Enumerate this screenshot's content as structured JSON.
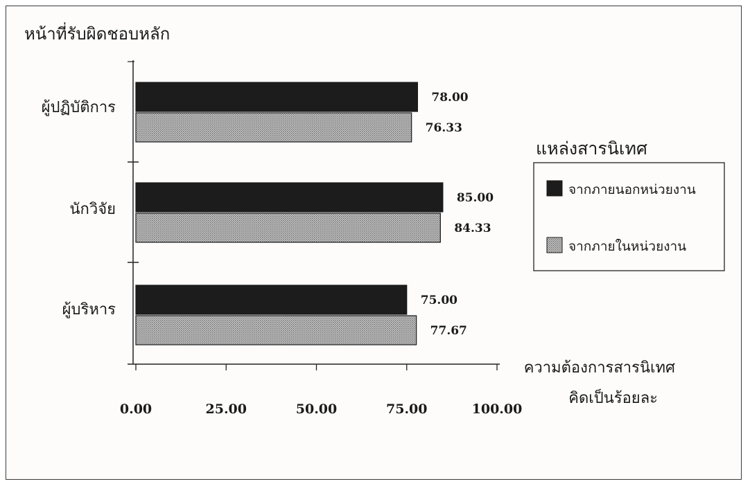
{
  "chart_data": {
    "type": "bar",
    "orientation": "horizontal",
    "title": "หน้าที่รับผิดชอบหลัก",
    "categories": [
      "ผู้ปฏิบัติการ",
      "นักวิจัย",
      "ผู้บริหาร"
    ],
    "series": [
      {
        "name": "จากภายนอกหน่วยงาน",
        "values": [
          78.0,
          85.0,
          75.0
        ],
        "color": "#1c1c1c"
      },
      {
        "name": "จากภายในหน่วยงาน",
        "values": [
          76.33,
          84.33,
          77.67
        ],
        "color": "#a9a9a9",
        "pattern": "dotted-gray"
      }
    ],
    "data_labels": [
      [
        "78.00",
        "85.00",
        "75.00"
      ],
      [
        "76.33",
        "84.33",
        "77.67"
      ]
    ],
    "xlabel_lines": [
      "ความต้องการสารนิเทศ",
      "คิดเป็นร้อยละ"
    ],
    "xticks": [
      "0.00",
      "25.00",
      "50.00",
      "75.00",
      "100.00"
    ],
    "xlim": [
      0,
      100
    ],
    "legend": {
      "title": "แหล่งสารนิเทศ",
      "placement": "right"
    },
    "grid": false
  }
}
